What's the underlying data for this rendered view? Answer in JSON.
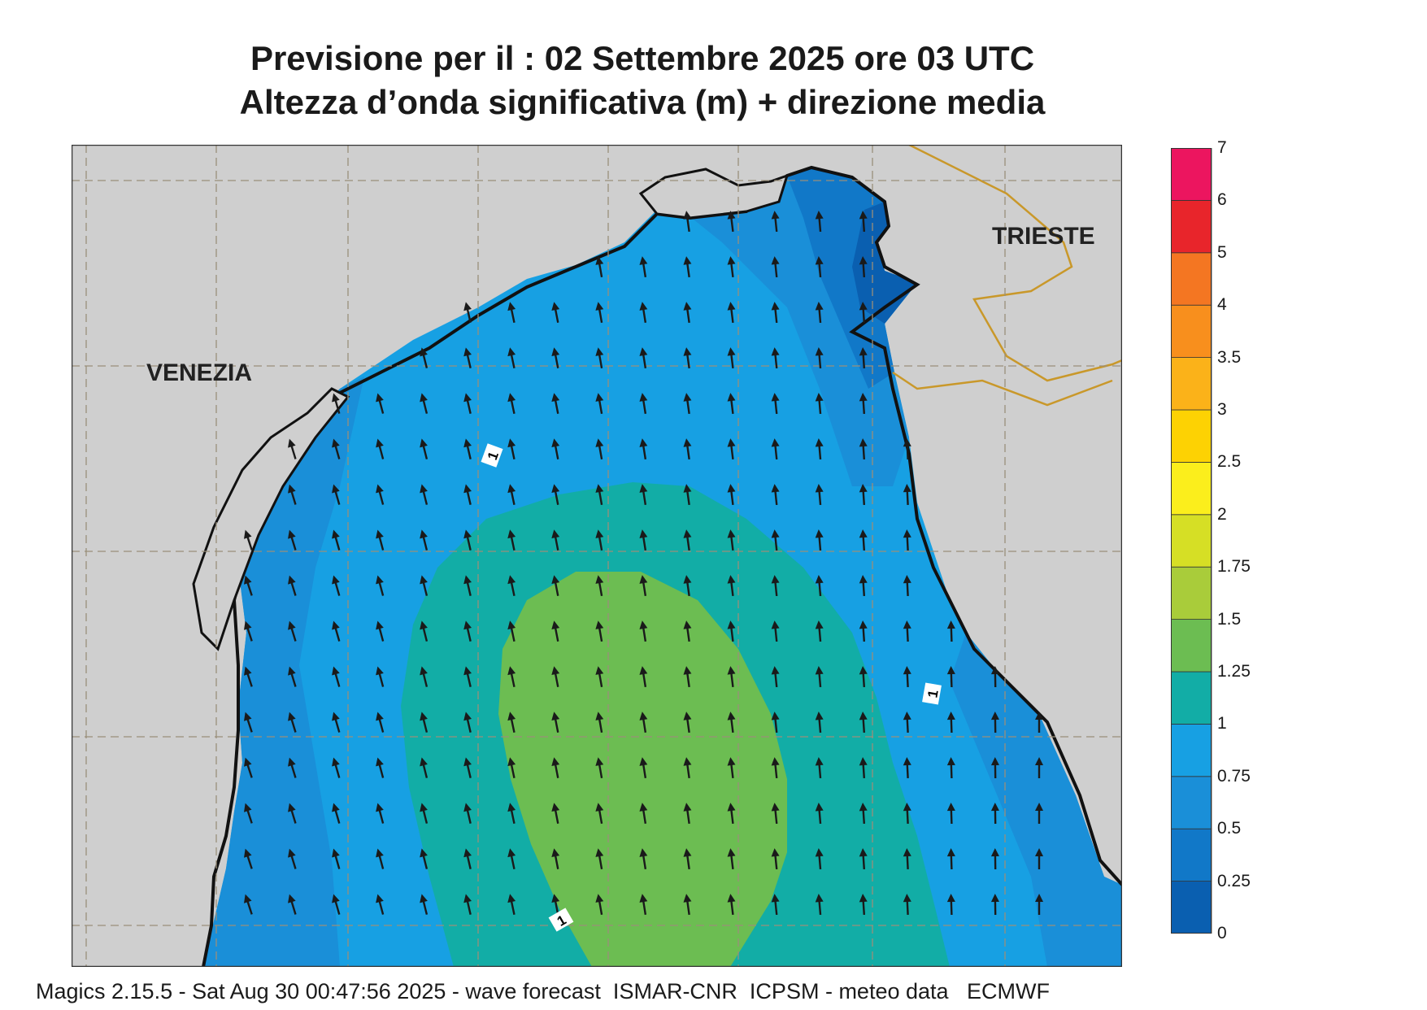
{
  "title_line1": "Previsione per il  :  02 Settembre 2025   ore 03 UTC",
  "title_line2": "Altezza d’onda significativa (m) + direzione media",
  "cities": {
    "venezia": "VENEZIA",
    "trieste": "TRIESTE"
  },
  "contour_labels": [
    "1",
    "1",
    "1"
  ],
  "legend": {
    "levels": [
      "0",
      "0.25",
      "0.5",
      "0.75",
      "1",
      "1.25",
      "1.5",
      "1.75",
      "2",
      "2.5",
      "3",
      "3.5",
      "4",
      "5",
      "6",
      "7"
    ],
    "colors": [
      "#0a5fb0",
      "#1178c8",
      "#1a8fd8",
      "#17a0e3",
      "#12ada6",
      "#6cbd52",
      "#a9cc3a",
      "#d6df25",
      "#fbee1c",
      "#fdd203",
      "#fbb219",
      "#f88f1d",
      "#f47622",
      "#e8252b",
      "#ec155f"
    ]
  },
  "footer": "Magics 2.15.5 - Sat Aug 30 00:47:56 2025 - wave forecast  ISMAR-CNR  ICPSM - meteo data   ECMWF"
}
